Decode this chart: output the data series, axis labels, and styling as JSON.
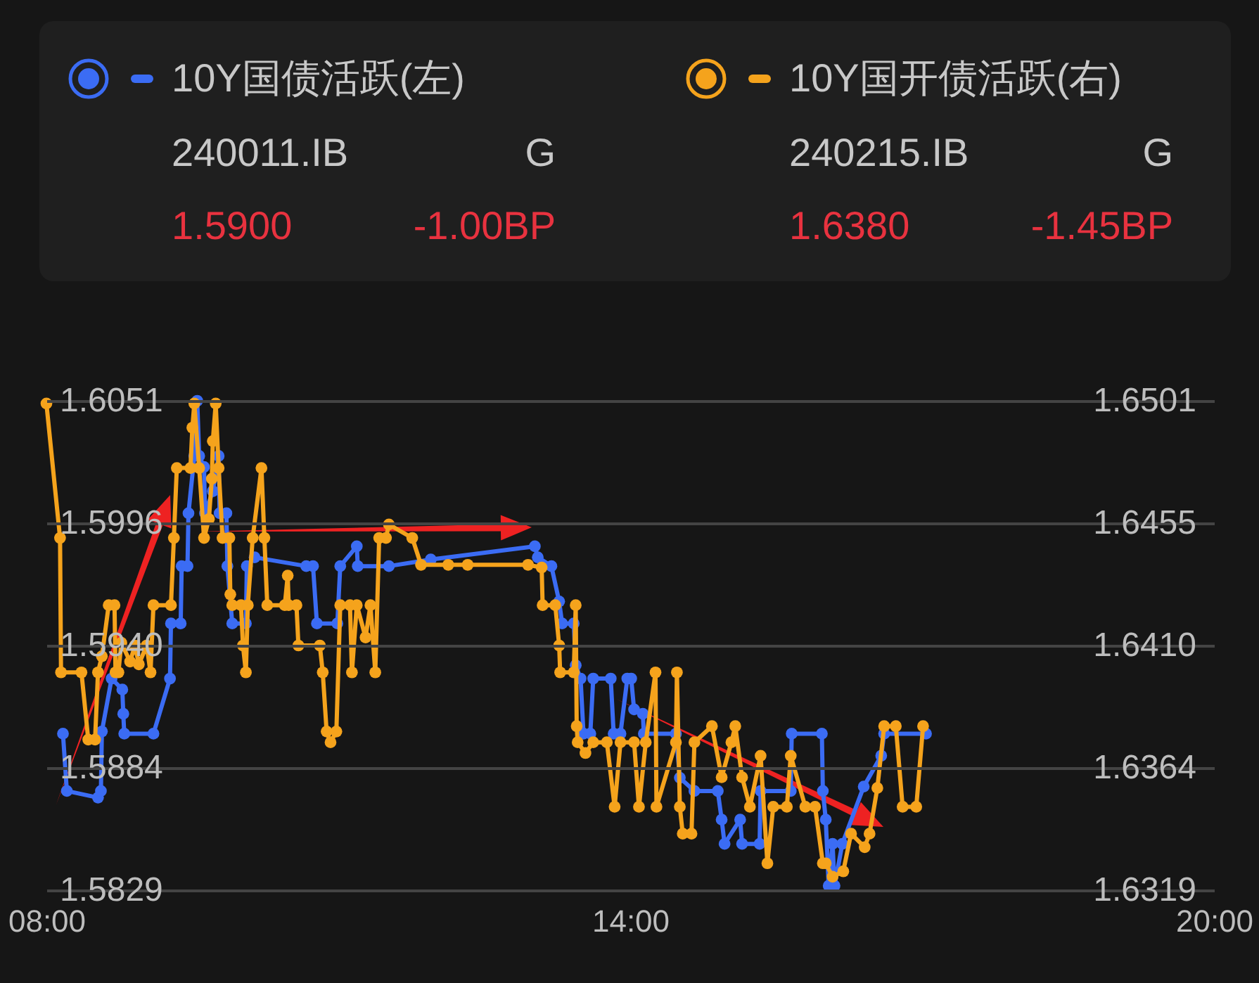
{
  "chart_data": {
    "type": "line",
    "legend": "top",
    "grid": "y",
    "marker": "circle",
    "line_style": "solid",
    "xlim": [
      8,
      20
    ],
    "xticks": [
      {
        "value": 8,
        "label": "08:00"
      },
      {
        "value": 14,
        "label": "14:00"
      },
      {
        "value": 20,
        "label": "20:00"
      }
    ],
    "ylim": [
      1.5829,
      1.6051
    ],
    "yticks": [
      1.5829,
      {
        "value": 1.58845,
        "label": "1.5884"
      },
      {
        "value": 1.594,
        "label": "1.5940"
      },
      {
        "value": 1.59955,
        "label": "1.5996"
      },
      1.6051
    ],
    "y2lim": [
      1.6319,
      1.6501
    ],
    "y2ticks": [
      1.6319,
      {
        "value": 1.63645,
        "label": "1.6364"
      },
      {
        "value": 1.641,
        "label": "1.6410"
      },
      {
        "value": 1.64555,
        "label": "1.6455"
      },
      1.6501
    ],
    "annotations": [
      "240011.IB",
      "G",
      "1.5900",
      "-1.00BP",
      "240215.IB",
      "G",
      "1.6380",
      "-1.45BP"
    ],
    "series": [
      {
        "name": "10Y国债活跃(左)",
        "color": "#3b6cf4",
        "axis": "y",
        "x": [
          8.17,
          8.21,
          8.53,
          8.56,
          8.57,
          8.67,
          8.78,
          8.79,
          8.8,
          9.1,
          9.27,
          9.28,
          9.38,
          9.39,
          9.45,
          9.46,
          9.52,
          9.55,
          9.57,
          9.62,
          9.63,
          9.71,
          9.77,
          9.78,
          9.85,
          9.86,
          9.91,
          10.05,
          10.06,
          10.14,
          10.67,
          10.74,
          10.78,
          10.99,
          11.02,
          11.19,
          11.2,
          11.52,
          11.95,
          13.02,
          13.05,
          13.19,
          13.27,
          13.3,
          13.42,
          13.44,
          13.49,
          13.52,
          13.59,
          13.62,
          13.8,
          13.83,
          13.9,
          13.97,
          14.01,
          14.04,
          14.13,
          14.14,
          14.47,
          14.51,
          14.66,
          14.9,
          14.94,
          14.97,
          15.13,
          15.15,
          15.33,
          15.34,
          15.65,
          15.66,
          15.97,
          15.98,
          16.01,
          16.04,
          16.08,
          16.1,
          16.18,
          16.4,
          16.58,
          16.61,
          17.04
        ],
        "values": [
          1.59,
          1.5874,
          1.5871,
          1.5874,
          1.5901,
          1.5925,
          1.592,
          1.5909,
          1.59,
          1.59,
          1.5925,
          1.595,
          1.595,
          1.5976,
          1.5976,
          1.6,
          1.6026,
          1.6051,
          1.6026,
          1.6021,
          1.6,
          1.601,
          1.6026,
          1.6,
          1.6,
          1.5976,
          1.595,
          1.595,
          1.5976,
          1.598,
          1.5976,
          1.5976,
          1.595,
          1.595,
          1.5976,
          1.5985,
          1.5976,
          1.5976,
          1.5979,
          1.5985,
          1.598,
          1.5976,
          1.596,
          1.595,
          1.595,
          1.5931,
          1.5925,
          1.59,
          1.59,
          1.5925,
          1.5925,
          1.59,
          1.59,
          1.5925,
          1.5925,
          1.5911,
          1.5909,
          1.59,
          1.59,
          1.588,
          1.5874,
          1.5874,
          1.5861,
          1.585,
          1.5861,
          1.585,
          1.585,
          1.5874,
          1.5874,
          1.59,
          1.59,
          1.5874,
          1.5861,
          1.5831,
          1.585,
          1.5831,
          1.585,
          1.5876,
          1.589,
          1.59,
          1.59
        ]
      },
      {
        "name": "10Y国开债活跃(右)",
        "color": "#f5a31c",
        "axis": "y2",
        "x": [
          8,
          8.14,
          8.15,
          8.36,
          8.43,
          8.5,
          8.53,
          8.57,
          8.64,
          8.7,
          8.71,
          8.74,
          8.77,
          8.86,
          8.91,
          8.95,
          9.03,
          9.07,
          9.1,
          9.28,
          9.31,
          9.34,
          9.48,
          9.5,
          9.52,
          9.57,
          9.62,
          9.67,
          9.7,
          9.71,
          9.74,
          9.77,
          9.81,
          9.88,
          9.89,
          9.91,
          10,
          10.02,
          10.05,
          10.07,
          10.12,
          10.21,
          10.24,
          10.27,
          10.45,
          10.48,
          10.49,
          10.57,
          10.59,
          10.81,
          10.84,
          10.88,
          10.92,
          10.98,
          11.02,
          11.12,
          11.14,
          11.19,
          11.28,
          11.33,
          11.38,
          11.42,
          11.49,
          11.52,
          11.76,
          11.85,
          12.13,
          12.33,
          12.95,
          13.09,
          13.1,
          13.23,
          13.27,
          13.28,
          13.42,
          13.44,
          13.45,
          13.46,
          13.54,
          13.62,
          13.76,
          13.84,
          13.9,
          14.04,
          14.09,
          14.16,
          14.26,
          14.27,
          14.47,
          14.48,
          14.51,
          14.54,
          14.63,
          14.66,
          14.84,
          14.94,
          15.04,
          15.08,
          15.15,
          15.23,
          15.34,
          15.41,
          15.47,
          15.61,
          15.65,
          15.8,
          15.9,
          15.98,
          16.01,
          16.08,
          16.19,
          16.27,
          16.41,
          16.46,
          16.54,
          16.61,
          16.73,
          16.8,
          16.94,
          17.01
        ],
        "values": [
          1.65,
          1.645,
          1.64,
          1.64,
          1.6375,
          1.6375,
          1.64,
          1.6406,
          1.6425,
          1.6425,
          1.64,
          1.64,
          1.6411,
          1.6404,
          1.641,
          1.6403,
          1.641,
          1.64,
          1.6425,
          1.6425,
          1.645,
          1.6476,
          1.6476,
          1.6491,
          1.65,
          1.6476,
          1.645,
          1.6457,
          1.6472,
          1.6486,
          1.65,
          1.6476,
          1.645,
          1.645,
          1.6429,
          1.6425,
          1.6425,
          1.641,
          1.64,
          1.6425,
          1.645,
          1.6476,
          1.645,
          1.6425,
          1.6425,
          1.6436,
          1.6425,
          1.6425,
          1.641,
          1.641,
          1.64,
          1.6378,
          1.6374,
          1.6378,
          1.6425,
          1.6425,
          1.64,
          1.6425,
          1.6413,
          1.6425,
          1.64,
          1.645,
          1.645,
          1.6455,
          1.645,
          1.644,
          1.644,
          1.644,
          1.644,
          1.6439,
          1.6425,
          1.6425,
          1.641,
          1.64,
          1.64,
          1.6425,
          1.638,
          1.6374,
          1.637,
          1.6374,
          1.6374,
          1.635,
          1.6374,
          1.6374,
          1.635,
          1.6374,
          1.64,
          1.635,
          1.6374,
          1.64,
          1.635,
          1.634,
          1.634,
          1.6374,
          1.638,
          1.6361,
          1.6374,
          1.638,
          1.6361,
          1.635,
          1.6369,
          1.6329,
          1.635,
          1.635,
          1.6369,
          1.635,
          1.635,
          1.6329,
          1.6329,
          1.6324,
          1.6326,
          1.634,
          1.6335,
          1.634,
          1.6357,
          1.638,
          1.638,
          1.635,
          1.635,
          1.638
        ]
      }
    ]
  }
}
